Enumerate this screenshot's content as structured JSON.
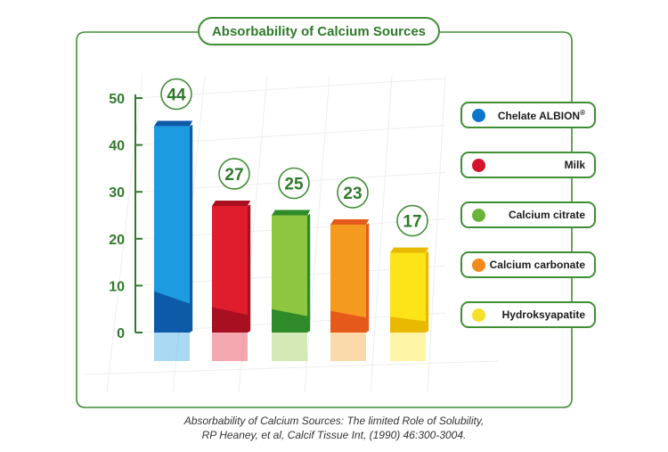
{
  "chart_data": {
    "type": "bar",
    "title": "Absorbability of Calcium Sources",
    "categories": [
      "Chelate ALBION",
      "Milk",
      "Calcium citrate",
      "Calcium carbonate",
      "Hydroksyapatite"
    ],
    "values": [
      44,
      27,
      25,
      23,
      17
    ],
    "data_labels": [
      "44",
      "27",
      "25",
      "23",
      "17"
    ],
    "colors": [
      "#1d9be0",
      "#e01d2d",
      "#8dc63f",
      "#f39a1f",
      "#fde418"
    ],
    "dark_colors": [
      "#0d5aa8",
      "#a80f20",
      "#2f8a2a",
      "#e55a1a",
      "#e9b800"
    ],
    "ylim": [
      0,
      50
    ],
    "yticks": [
      "0",
      "10",
      "20",
      "30",
      "40",
      "50"
    ],
    "xlabel": "",
    "ylabel": "",
    "grid": true,
    "legend_position": "right",
    "legend": [
      {
        "label": "Chelate ALBION",
        "mark": "®"
      },
      {
        "label": "Milk"
      },
      {
        "label": "Calcium citrate"
      },
      {
        "label": "Calcium carbonate"
      },
      {
        "label": "Hydroksyapatite"
      }
    ]
  },
  "citation": {
    "line1": "Absorbability of Calcium Sources: The limited Role of Solubility,",
    "line2": "RP Heaney, et al, Calcif Tissue Int, (1990) 46:300-3004."
  }
}
